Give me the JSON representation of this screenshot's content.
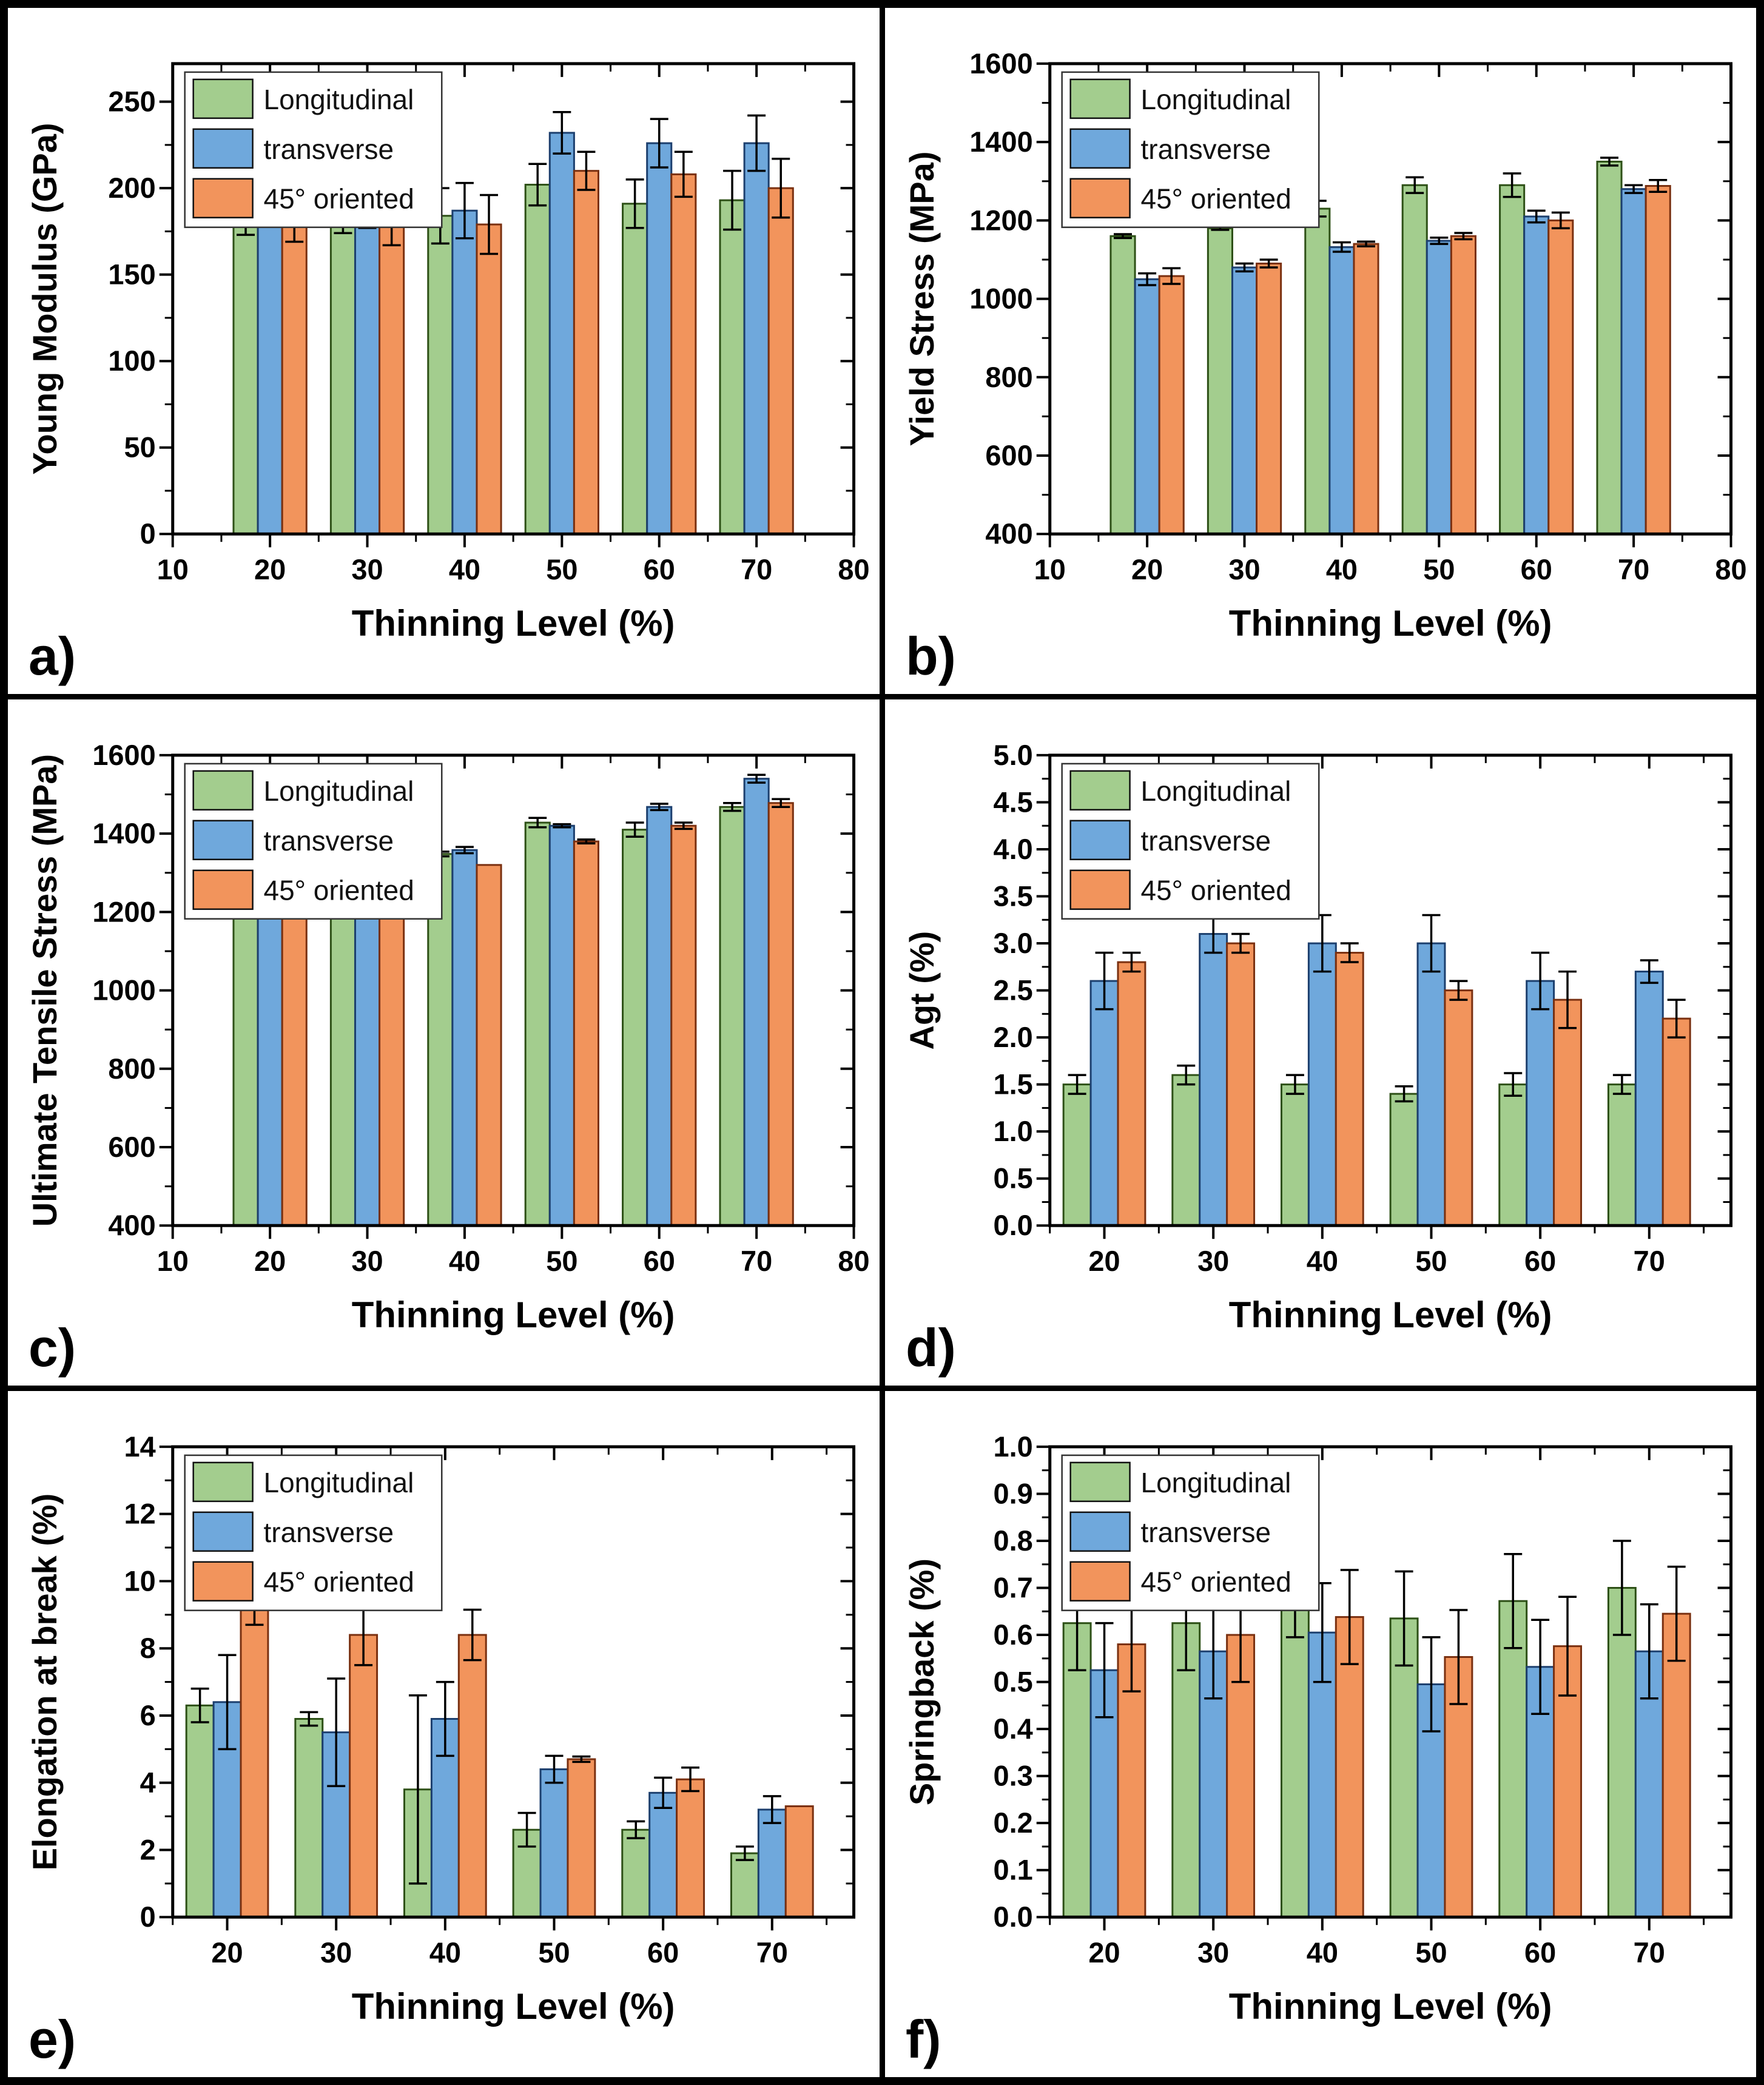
{
  "figure": {
    "background": "#ffffff",
    "frame_color": "#000000"
  },
  "colors": {
    "longitudinal": {
      "fill": "#A3CD8E",
      "edge": "#2D5016"
    },
    "transverse": {
      "fill": "#6FA8DC",
      "edge": "#1C3F6E"
    },
    "oriented45": {
      "fill": "#F2945C",
      "edge": "#7A3010"
    },
    "error_bar": "#000000",
    "axis": "#000000"
  },
  "legend": {
    "position": "upper-left",
    "items": [
      "Longitudinal",
      "transverse",
      "45° oriented"
    ]
  },
  "chart_data": [
    {
      "id": "a",
      "letter": "a)",
      "type": "bar",
      "xlabel": "Thinning Level (%)",
      "ylabel": "Young Modulus (GPa)",
      "xlim": [
        10,
        80
      ],
      "xticks": [
        10,
        20,
        30,
        40,
        50,
        60,
        70,
        80
      ],
      "ylim": [
        0,
        272
      ],
      "ytick_step": 50,
      "y_decimals": 0,
      "bar_units": 2.5,
      "grid": false,
      "categories": [
        20,
        30,
        40,
        50,
        60,
        70
      ],
      "series": [
        {
          "name": "Longitudinal",
          "color_key": "longitudinal",
          "values": [
            185,
            188,
            184,
            202,
            191,
            193
          ],
          "errors": [
            12,
            14,
            16,
            12,
            14,
            17
          ]
        },
        {
          "name": "transverse",
          "color_key": "transverse",
          "values": [
            200,
            191,
            187,
            232,
            226,
            226
          ],
          "errors": [
            13,
            14,
            16,
            12,
            14,
            16
          ]
        },
        {
          "name": "45° oriented",
          "color_key": "oriented45",
          "values": [
            181,
            181,
            179,
            210,
            208,
            200
          ],
          "errors": [
            12,
            14,
            17,
            11,
            13,
            17
          ]
        }
      ]
    },
    {
      "id": "b",
      "letter": "b)",
      "type": "bar",
      "xlabel": "Thinning Level (%)",
      "ylabel": "Yield Stress (MPa)",
      "xlim": [
        10,
        80
      ],
      "xticks": [
        10,
        20,
        30,
        40,
        50,
        60,
        70,
        80
      ],
      "ylim": [
        400,
        1600
      ],
      "ytick_step": 200,
      "y_decimals": 0,
      "bar_units": 2.5,
      "grid": false,
      "categories": [
        20,
        30,
        40,
        50,
        60,
        70
      ],
      "series": [
        {
          "name": "Longitudinal",
          "color_key": "longitudinal",
          "values": [
            1160,
            1180,
            1230,
            1290,
            1290,
            1350
          ],
          "errors": [
            5,
            4,
            20,
            20,
            30,
            10
          ]
        },
        {
          "name": "transverse",
          "color_key": "transverse",
          "values": [
            1050,
            1080,
            1132,
            1148,
            1210,
            1280
          ],
          "errors": [
            15,
            10,
            12,
            8,
            15,
            10
          ]
        },
        {
          "name": "45° oriented",
          "color_key": "oriented45",
          "values": [
            1058,
            1090,
            1140,
            1160,
            1200,
            1288
          ],
          "errors": [
            20,
            10,
            6,
            8,
            20,
            15
          ]
        }
      ]
    },
    {
      "id": "c",
      "letter": "c)",
      "type": "bar",
      "xlabel": "Thinning Level (%)",
      "ylabel": "Ultimate Tensile Stress (MPa)",
      "xlim": [
        10,
        80
      ],
      "xticks": [
        10,
        20,
        30,
        40,
        50,
        60,
        70,
        80
      ],
      "ylim": [
        400,
        1600
      ],
      "ytick_step": 200,
      "y_decimals": 0,
      "bar_units": 2.5,
      "grid": false,
      "categories": [
        20,
        30,
        40,
        50,
        60,
        70
      ],
      "series": [
        {
          "name": "Longitudinal",
          "color_key": "longitudinal",
          "values": [
            1248,
            1300,
            1348,
            1428,
            1410,
            1468
          ],
          "errors": [
            8,
            8,
            6,
            12,
            18,
            10
          ]
        },
        {
          "name": "transverse",
          "color_key": "transverse",
          "values": [
            1248,
            1297,
            1358,
            1420,
            1468,
            1540
          ],
          "errors": [
            12,
            6,
            8,
            4,
            8,
            10
          ]
        },
        {
          "name": "45° oriented",
          "color_key": "oriented45",
          "values": [
            1220,
            1280,
            1320,
            1380,
            1420,
            1478
          ],
          "errors": [
            10,
            8,
            0,
            5,
            8,
            10
          ]
        }
      ]
    },
    {
      "id": "d",
      "letter": "d)",
      "type": "bar",
      "xlabel": "Thinning Level (%)",
      "ylabel": "Agt (%)",
      "xlim": [
        15,
        77.5
      ],
      "xticks": [
        20,
        30,
        40,
        50,
        60,
        70
      ],
      "ylim": [
        0,
        5.0
      ],
      "ytick_step": 0.5,
      "y_decimals": 1,
      "bar_units": 2.5,
      "grid": false,
      "categories": [
        20,
        30,
        40,
        50,
        60,
        70
      ],
      "series": [
        {
          "name": "Longitudinal",
          "color_key": "longitudinal",
          "values": [
            1.5,
            1.6,
            1.5,
            1.4,
            1.5,
            1.5
          ],
          "errors": [
            0.1,
            0.1,
            0.1,
            0.08,
            0.12,
            0.1
          ]
        },
        {
          "name": "transverse",
          "color_key": "transverse",
          "values": [
            2.6,
            3.1,
            3.0,
            3.0,
            2.6,
            2.7
          ],
          "errors": [
            0.3,
            0.2,
            0.3,
            0.3,
            0.3,
            0.12
          ]
        },
        {
          "name": "45° oriented",
          "color_key": "oriented45",
          "values": [
            2.8,
            3.0,
            2.9,
            2.5,
            2.4,
            2.2
          ],
          "errors": [
            0.1,
            0.1,
            0.1,
            0.1,
            0.3,
            0.2
          ]
        }
      ]
    },
    {
      "id": "e",
      "letter": "e)",
      "type": "bar",
      "xlabel": "Thinning Level (%)",
      "ylabel": "Elongation at break (%)",
      "xlim": [
        15,
        77.5
      ],
      "xticks": [
        20,
        30,
        40,
        50,
        60,
        70
      ],
      "ylim": [
        0,
        14
      ],
      "ytick_step": 2,
      "y_decimals": 0,
      "bar_units": 2.5,
      "grid": false,
      "categories": [
        20,
        30,
        40,
        50,
        60,
        70
      ],
      "series": [
        {
          "name": "Longitudinal",
          "color_key": "longitudinal",
          "values": [
            6.3,
            5.9,
            3.8,
            2.6,
            2.6,
            1.9
          ],
          "errors": [
            0.5,
            0.2,
            2.8,
            0.5,
            0.25,
            0.2
          ]
        },
        {
          "name": "transverse",
          "color_key": "transverse",
          "values": [
            6.4,
            5.5,
            5.9,
            4.4,
            3.7,
            3.2
          ],
          "errors": [
            1.4,
            1.6,
            1.1,
            0.4,
            0.45,
            0.4
          ]
        },
        {
          "name": "45° oriented",
          "color_key": "oriented45",
          "values": [
            9.2,
            8.4,
            8.4,
            4.7,
            4.1,
            3.3
          ],
          "errors": [
            0.5,
            0.9,
            0.75,
            0.08,
            0.35,
            0
          ]
        }
      ]
    },
    {
      "id": "f",
      "letter": "f)",
      "type": "bar",
      "xlabel": "Thinning Level (%)",
      "ylabel": "Springback (%)",
      "xlim": [
        15,
        77.5
      ],
      "xticks": [
        20,
        30,
        40,
        50,
        60,
        70
      ],
      "ylim": [
        0,
        1.0
      ],
      "ytick_step": 0.1,
      "y_decimals": 1,
      "bar_units": 2.5,
      "grid": false,
      "categories": [
        20,
        30,
        40,
        50,
        60,
        70
      ],
      "series": [
        {
          "name": "Longitudinal",
          "color_key": "longitudinal",
          "values": [
            0.625,
            0.625,
            0.665,
            0.635,
            0.672,
            0.7
          ],
          "errors": [
            0.1,
            0.1,
            0.07,
            0.1,
            0.1,
            0.1
          ]
        },
        {
          "name": "transverse",
          "color_key": "transverse",
          "values": [
            0.525,
            0.565,
            0.605,
            0.495,
            0.532,
            0.565
          ],
          "errors": [
            0.1,
            0.1,
            0.105,
            0.1,
            0.1,
            0.1
          ]
        },
        {
          "name": "45° oriented",
          "color_key": "oriented45",
          "values": [
            0.58,
            0.6,
            0.638,
            0.553,
            0.576,
            0.645
          ],
          "errors": [
            0.1,
            0.1,
            0.1,
            0.1,
            0.105,
            0.1
          ]
        }
      ]
    }
  ]
}
